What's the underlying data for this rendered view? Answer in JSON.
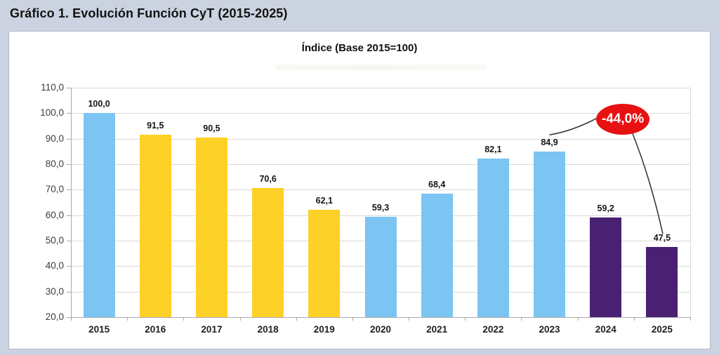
{
  "page": {
    "header_title": "Gráfico 1. Evolución Función CyT (2015-2025)"
  },
  "chart_data": {
    "type": "bar",
    "title": "Índice (Base 2015=100)",
    "categories": [
      "2015",
      "2016",
      "2017",
      "2018",
      "2019",
      "2020",
      "2021",
      "2022",
      "2023",
      "2024",
      "2025"
    ],
    "values": [
      100.0,
      91.5,
      90.5,
      70.6,
      62.1,
      59.3,
      68.4,
      82.1,
      84.9,
      59.2,
      47.5
    ],
    "value_labels": [
      "100,0",
      "91,5",
      "90,5",
      "70,6",
      "62,1",
      "59,3",
      "68,4",
      "82,1",
      "84,9",
      "59,2",
      "47,5"
    ],
    "bar_colors": [
      "#7cc5f3",
      "#fdd128",
      "#fdd128",
      "#fdd128",
      "#fdd128",
      "#7cc5f3",
      "#7cc5f3",
      "#7cc5f3",
      "#7cc5f3",
      "#482173",
      "#482173"
    ],
    "ylim": [
      20,
      110
    ],
    "ytick_step": 10,
    "ytick_labels": [
      "110,0",
      "100,0",
      "90,0",
      "80,0",
      "70,0",
      "60,0",
      "50,0",
      "40,0",
      "30,0",
      "20,0"
    ],
    "grid": true,
    "legend": null,
    "annotation": {
      "text": "-44,0%",
      "fill_color": "#e81111",
      "text_color": "#ffffff",
      "points_from_category": "2023",
      "points_to_category": "2025",
      "connector_color": "#3a3a3a"
    }
  }
}
